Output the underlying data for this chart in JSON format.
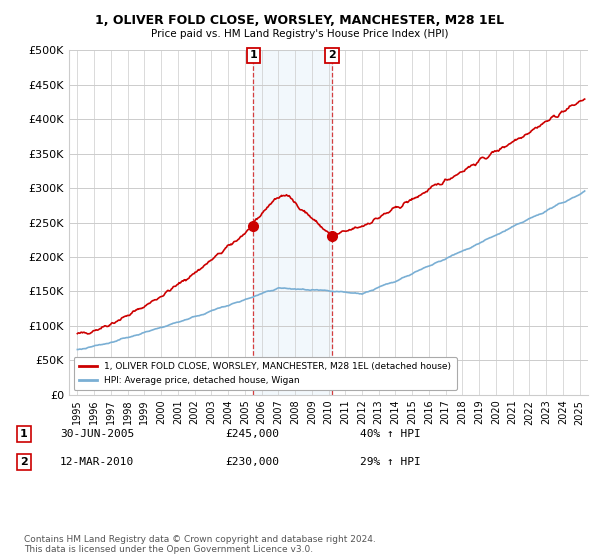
{
  "title": "1, OLIVER FOLD CLOSE, WORSLEY, MANCHESTER, M28 1EL",
  "subtitle": "Price paid vs. HM Land Registry's House Price Index (HPI)",
  "ylim": [
    0,
    500000
  ],
  "yticks": [
    0,
    50000,
    100000,
    150000,
    200000,
    250000,
    300000,
    350000,
    400000,
    450000,
    500000
  ],
  "xlim_start": 1994.5,
  "xlim_end": 2025.5,
  "sale1_date": 2005.5,
  "sale1_price": 245000,
  "sale2_date": 2010.2,
  "sale2_price": 230000,
  "sale1_label": "1",
  "sale2_label": "2",
  "red_line_color": "#cc0000",
  "blue_line_color": "#7aafd4",
  "marker_color": "#cc0000",
  "background_color": "#ffffff",
  "grid_color": "#cccccc",
  "legend_label_red": "1, OLIVER FOLD CLOSE, WORSLEY, MANCHESTER, M28 1EL (detached house)",
  "legend_label_blue": "HPI: Average price, detached house, Wigan",
  "footer": "Contains HM Land Registry data © Crown copyright and database right 2024.\nThis data is licensed under the Open Government Licence v3.0."
}
